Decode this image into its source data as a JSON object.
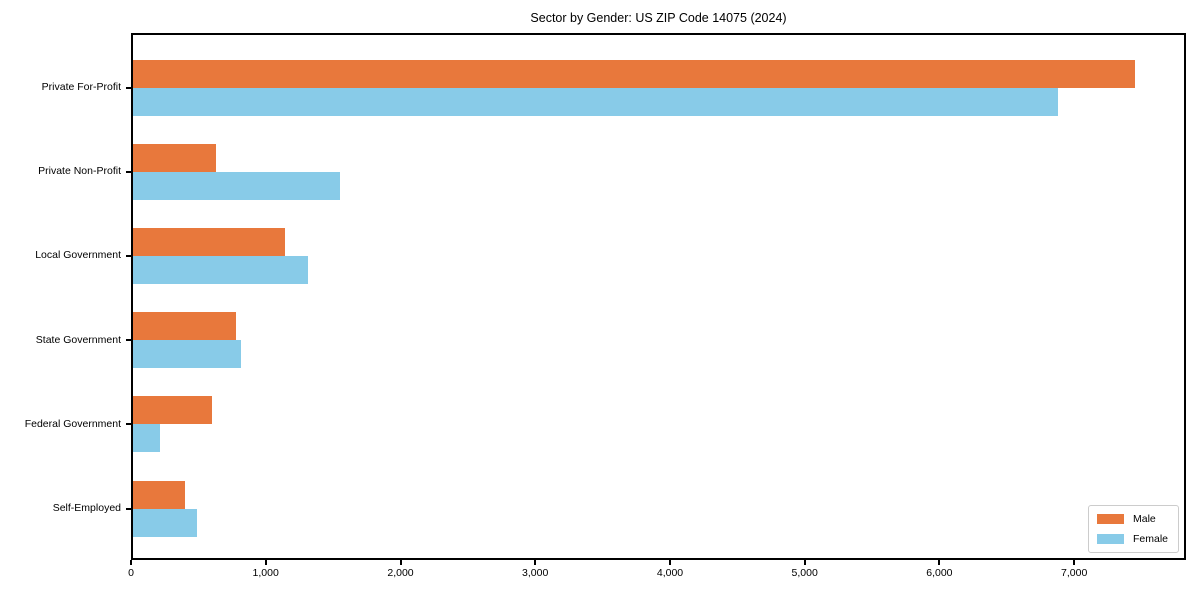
{
  "chart_data": {
    "type": "bar",
    "orientation": "horizontal",
    "title": "Sector by Gender: US ZIP Code 14075 (2024)",
    "categories": [
      "Private For-Profit",
      "Private Non-Profit",
      "Local Government",
      "State Government",
      "Federal Government",
      "Self-Employed"
    ],
    "series": [
      {
        "name": "Male",
        "color": "#E8783C",
        "values": [
          7450,
          630,
          1140,
          780,
          600,
          400
        ]
      },
      {
        "name": "Female",
        "color": "#88CBE8",
        "values": [
          6880,
          1550,
          1310,
          815,
          215,
          490
        ]
      }
    ],
    "xlim": [
      0,
      7830
    ],
    "x_ticks": [
      0,
      1000,
      2000,
      3000,
      4000,
      5000,
      6000,
      7000
    ],
    "x_tick_labels": [
      "0",
      "1,000",
      "2,000",
      "3,000",
      "4,000",
      "5,000",
      "6,000",
      "7,000"
    ],
    "grid": false,
    "legend_position": "lower right"
  }
}
